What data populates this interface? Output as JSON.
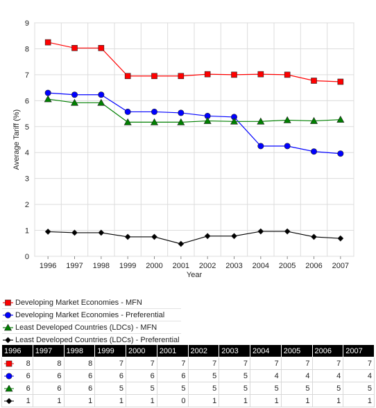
{
  "colors": {
    "mfn_dev": "#ff0000",
    "pref_dev": "#0000ff",
    "mfn_ldc": "#008000",
    "pref_ldc": "#000000"
  },
  "chart_data": {
    "type": "line",
    "xlabel": "Year",
    "ylabel": "Average Tariff (%)",
    "ylim": [
      0,
      9
    ],
    "yticks": [
      "0",
      "1",
      "2",
      "3",
      "4",
      "5",
      "6",
      "7",
      "8",
      "9"
    ],
    "grid": true,
    "legend_position": "bottom",
    "categories": [
      "1996",
      "1997",
      "1998",
      "1999",
      "2000",
      "2001",
      "2002",
      "2003",
      "2004",
      "2005",
      "2006",
      "2007"
    ],
    "series": [
      {
        "name": "Developing Market Economies - MFN",
        "marker": "square",
        "color": "#ff0000",
        "values": [
          8.25,
          8.03,
          8.03,
          6.95,
          6.95,
          6.95,
          7.02,
          7.0,
          7.02,
          7.0,
          6.77,
          6.73
        ]
      },
      {
        "name": "Developing Market Economies - Preferential",
        "marker": "circle",
        "color": "#0000ff",
        "values": [
          6.3,
          6.23,
          6.23,
          5.57,
          5.57,
          5.53,
          5.41,
          5.37,
          4.25,
          4.25,
          4.04,
          3.96
        ]
      },
      {
        "name": "Least Developed Countries (LDCs) - MFN",
        "marker": "triangle",
        "color": "#008000",
        "values": [
          6.06,
          5.92,
          5.92,
          5.17,
          5.17,
          5.17,
          5.22,
          5.2,
          5.2,
          5.25,
          5.22,
          5.27
        ]
      },
      {
        "name": "Least Developed Countries (LDCs) - Preferential",
        "marker": "diamond",
        "color": "#000000",
        "values": [
          0.95,
          0.91,
          0.91,
          0.75,
          0.75,
          0.48,
          0.78,
          0.78,
          0.96,
          0.96,
          0.75,
          0.69
        ]
      }
    ]
  },
  "table": {
    "header": [
      "1996",
      "1997",
      "1998",
      "1999",
      "2000",
      "2001",
      "2002",
      "2003",
      "2004",
      "2005",
      "2006",
      "2007"
    ],
    "rows": [
      [
        "8",
        "8",
        "8",
        "7",
        "7",
        "7",
        "7",
        "7",
        "7",
        "7",
        "7",
        "7"
      ],
      [
        "6",
        "6",
        "6",
        "6",
        "6",
        "6",
        "5",
        "5",
        "4",
        "4",
        "4",
        "4"
      ],
      [
        "6",
        "6",
        "6",
        "5",
        "5",
        "5",
        "5",
        "5",
        "5",
        "5",
        "5",
        "5"
      ],
      [
        "1",
        "1",
        "1",
        "1",
        "1",
        "0",
        "1",
        "1",
        "1",
        "1",
        "1",
        "1"
      ]
    ]
  }
}
